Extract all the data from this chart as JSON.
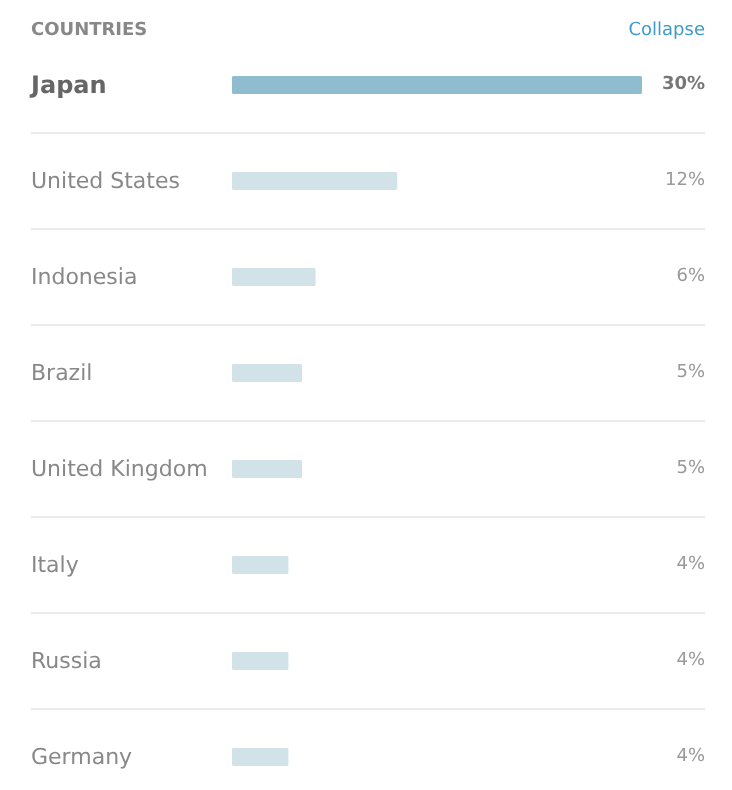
{
  "chart_data": {
    "type": "bar",
    "orientation": "horizontal",
    "title": "COUNTRIES",
    "annotations": [
      "Collapse"
    ],
    "categories": [
      "Japan",
      "United States",
      "Indonesia",
      "Brazil",
      "United Kingdom",
      "Italy",
      "Russia",
      "Germany"
    ],
    "values": [
      30,
      12,
      6,
      5,
      5,
      4,
      4,
      4
    ],
    "colors": [
      "#90bccf",
      "#d2e2e9",
      "#d2e2e9",
      "#d2e2e9",
      "#d2e2e9",
      "#d2e2e9",
      "#d2e2e9",
      "#d2e2e9"
    ],
    "value_labels": [
      "30%",
      "12%",
      "6%",
      "5%",
      "5%",
      "4%",
      "4%",
      "4%"
    ],
    "grid": false
  }
}
